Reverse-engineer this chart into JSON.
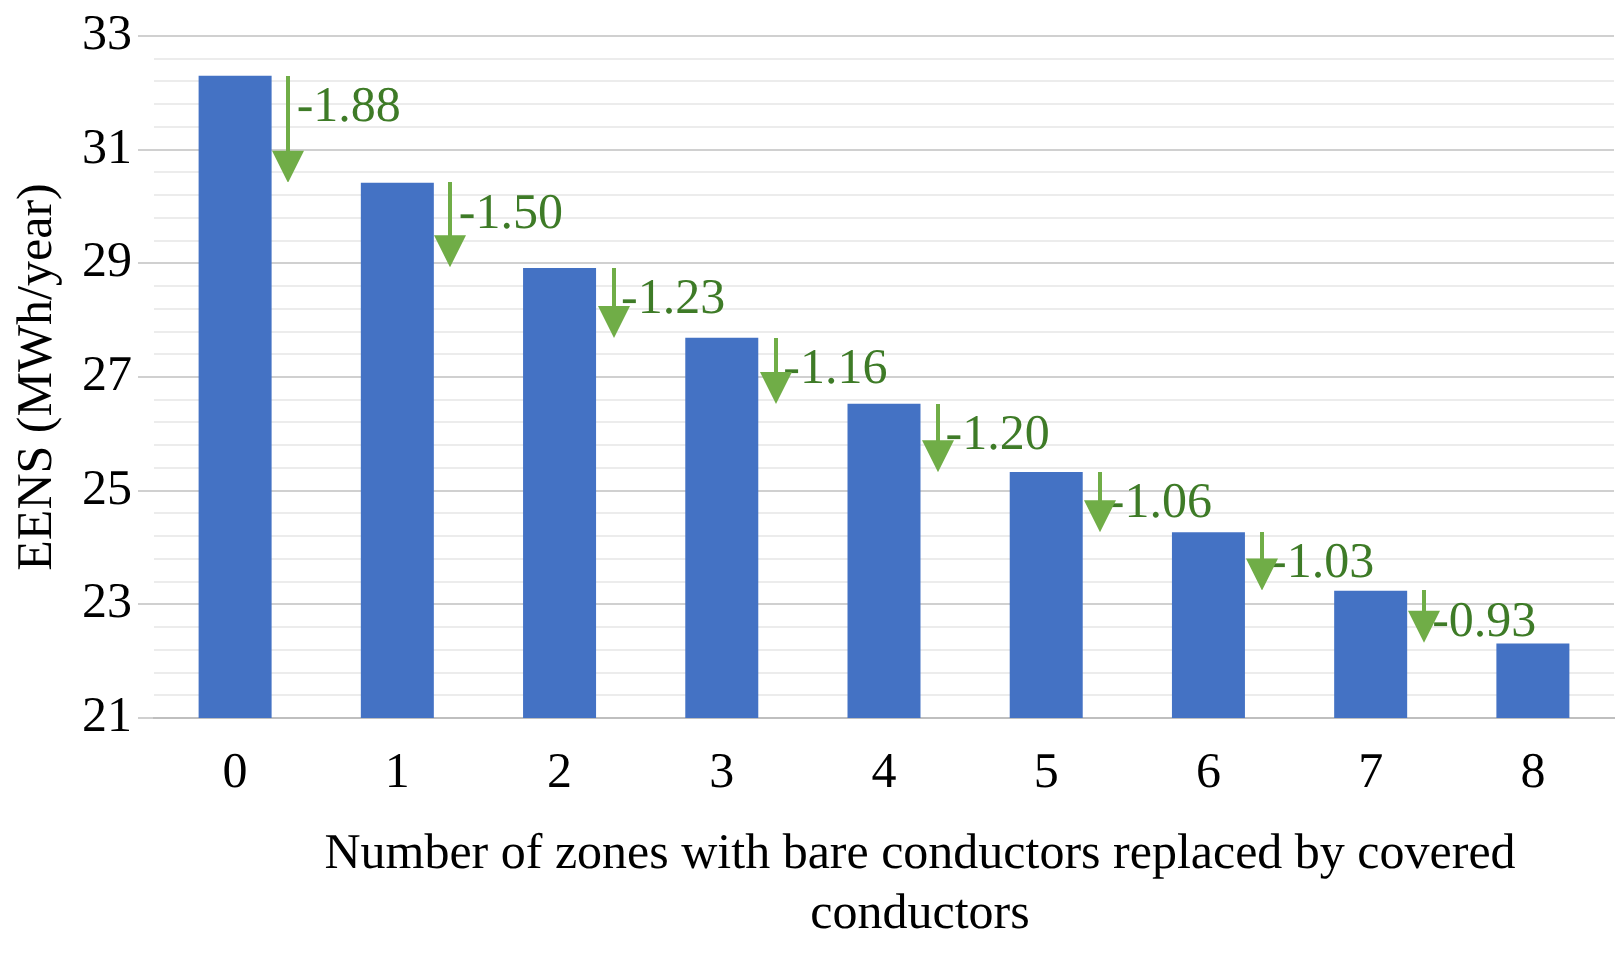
{
  "chart_data": {
    "type": "bar",
    "xlabel": "Number of zones with bare conductors replaced by covered conductors",
    "ylabel": "EENS (MWh/year)",
    "categories": [
      "0",
      "1",
      "2",
      "3",
      "4",
      "5",
      "6",
      "7",
      "8"
    ],
    "values": [
      32.3,
      30.42,
      28.92,
      27.69,
      26.53,
      25.33,
      24.27,
      23.24,
      22.31
    ],
    "color": "#4472c4",
    "ylim": [
      21,
      33
    ],
    "yticks": [
      21,
      {
        "value": 21.4,
        "label": null
      },
      {
        "value": 21.8,
        "label": null
      },
      {
        "value": 22.2,
        "label": null
      },
      {
        "value": 22.6,
        "label": null
      },
      23,
      {
        "value": 23.4,
        "label": null
      },
      {
        "value": 23.8,
        "label": null
      },
      {
        "value": 24.2,
        "label": null
      },
      {
        "value": 24.6,
        "label": null
      },
      25,
      {
        "value": 25.4,
        "label": null
      },
      {
        "value": 25.8,
        "label": null
      },
      {
        "value": 26.2,
        "label": null
      },
      {
        "value": 26.6,
        "label": null
      },
      27,
      {
        "value": 27.4,
        "label": null
      },
      {
        "value": 27.8,
        "label": null
      },
      {
        "value": 28.2,
        "label": null
      },
      {
        "value": 28.6,
        "label": null
      },
      29,
      {
        "value": 29.4,
        "label": null
      },
      {
        "value": 29.8,
        "label": null
      },
      {
        "value": 30.2,
        "label": null
      },
      {
        "value": 30.6,
        "label": null
      },
      31,
      {
        "value": 31.4,
        "label": null
      },
      {
        "value": 31.8,
        "label": null
      },
      {
        "value": 32.2,
        "label": null
      },
      {
        "value": 32.6,
        "label": null
      },
      33
    ],
    "grid": "y",
    "legend": false,
    "annotations": [
      "-1.88",
      "-1.50",
      "-1.23",
      "-1.16",
      "-1.20",
      "-1.06",
      "-1.03",
      "-0.93"
    ]
  }
}
